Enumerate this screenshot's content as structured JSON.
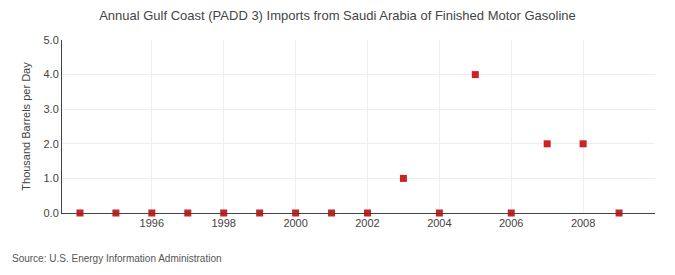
{
  "chart_data": {
    "type": "scatter",
    "title": "Annual Gulf Coast (PADD 3) Imports from Saudi Arabia of Finished Motor Gasoline",
    "ylabel": "Thousand Barrels per Day",
    "annotations": [
      "Source: U.S. Energy Information Administration"
    ],
    "x": [
      1994,
      1995,
      1996,
      1997,
      1998,
      1999,
      2000,
      2001,
      2002,
      2003,
      2004,
      2005,
      2006,
      2007,
      2008,
      2009
    ],
    "values": [
      0,
      0,
      0,
      0,
      0,
      0,
      0,
      0,
      0,
      1.0,
      0,
      4.0,
      0,
      2.0,
      2.0,
      0
    ],
    "color": "#cc2222",
    "marker": "square",
    "xlim": [
      1993.5,
      2010.0
    ],
    "xticks": [
      1996,
      1998,
      2000,
      2002,
      2004,
      2006,
      2008
    ],
    "ylim": [
      0,
      5.0
    ],
    "yticks": [
      {
        "value": 0.0,
        "label": "0.0"
      },
      {
        "value": 1.0,
        "label": "1.0"
      },
      {
        "value": 2.0,
        "label": "2.0"
      },
      {
        "value": 3.0,
        "label": "3.0"
      },
      {
        "value": 4.0,
        "label": "4.0"
      },
      {
        "value": 5.0,
        "label": "5.0"
      }
    ],
    "grid": true
  }
}
